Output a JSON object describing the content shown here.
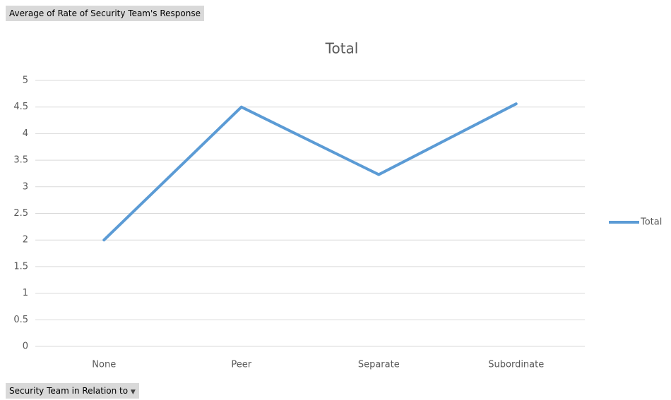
{
  "field_buttons": {
    "values_field": "Average of Rate of Security Team's Response",
    "axis_field": "Security Team in Relation to"
  },
  "chart_data": {
    "type": "line",
    "title": "Total",
    "categories": [
      "None",
      "Peer",
      "Separate",
      "Subordinate"
    ],
    "series": [
      {
        "name": "Total",
        "color": "#5b9bd5",
        "values": [
          2,
          4.5,
          3.23,
          4.56
        ]
      }
    ],
    "ylim": [
      0,
      5
    ],
    "yticks": [
      0,
      0.5,
      1,
      1.5,
      2,
      2.5,
      3,
      3.5,
      4,
      4.5,
      5
    ],
    "grid": true,
    "legend": "right"
  }
}
